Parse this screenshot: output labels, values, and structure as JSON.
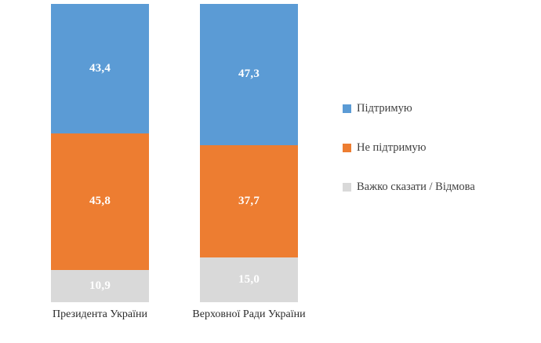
{
  "chart_data": {
    "type": "bar",
    "stacked": true,
    "orientation": "vertical",
    "categories": [
      "Президента України",
      "Верховної Ради України"
    ],
    "series": [
      {
        "name": "Підтримую",
        "color": "#5B9BD5",
        "values": [
          43.4,
          47.3
        ],
        "labels": [
          "43,4",
          "47,3"
        ]
      },
      {
        "name": "Не підтримую",
        "color": "#ED7D31",
        "values": [
          45.8,
          37.7
        ],
        "labels": [
          "45,8",
          "37,7"
        ]
      },
      {
        "name": "Важко сказати / Відмова",
        "color": "#D9D9D9",
        "values": [
          10.9,
          15.0
        ],
        "labels": [
          "10,9",
          "15,0"
        ]
      }
    ],
    "value_label_color": "#ffffff",
    "legend_position": "right",
    "grid": false,
    "ylim": [
      0,
      100
    ]
  }
}
